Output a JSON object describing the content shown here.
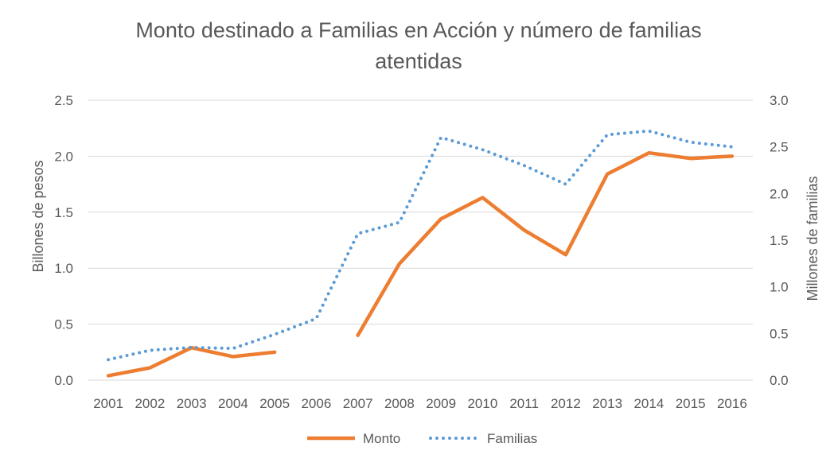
{
  "chart_data": {
    "type": "line",
    "title_lines": [
      "Monto destinado a Familias en Acción y número de familias",
      "atentidas"
    ],
    "categories": [
      "2001",
      "2002",
      "2003",
      "2004",
      "2005",
      "2006",
      "2007",
      "2008",
      "2009",
      "2010",
      "2011",
      "2012",
      "2013",
      "2014",
      "2015",
      "2016"
    ],
    "left_axis": {
      "label": "Billones de pesos",
      "ylim": [
        0,
        2.5
      ],
      "ticks": [
        "0.0",
        "0.5",
        "1.0",
        "1.5",
        "2.0",
        "2.5"
      ]
    },
    "right_axis": {
      "label": "Millones de familias",
      "ylim": [
        0,
        3.0
      ],
      "ticks": [
        "0.0",
        "0.5",
        "1.0",
        "1.5",
        "2.0",
        "2.5",
        "3.0"
      ]
    },
    "grid": true,
    "legend_position": "bottom",
    "series": [
      {
        "name": "Monto",
        "axis": "left",
        "style": "solid",
        "color": "#ed7d31",
        "segments": [
          {
            "start": 0,
            "values": [
              0.04,
              0.11,
              0.29,
              0.21,
              0.25
            ]
          },
          {
            "start": 6,
            "values": [
              0.4,
              1.04,
              1.44,
              1.63,
              1.34,
              1.12,
              1.84,
              2.03,
              1.98,
              2.0
            ]
          }
        ]
      },
      {
        "name": "Familias",
        "axis": "right",
        "style": "dotted",
        "color": "#5b9bd5",
        "segments": [
          {
            "start": 0,
            "values": [
              0.22,
              0.32,
              0.35,
              0.34,
              0.49,
              0.66,
              1.57,
              1.69,
              2.6,
              2.47,
              2.3,
              2.1,
              2.63,
              2.67,
              2.55,
              2.5
            ]
          }
        ]
      }
    ]
  }
}
